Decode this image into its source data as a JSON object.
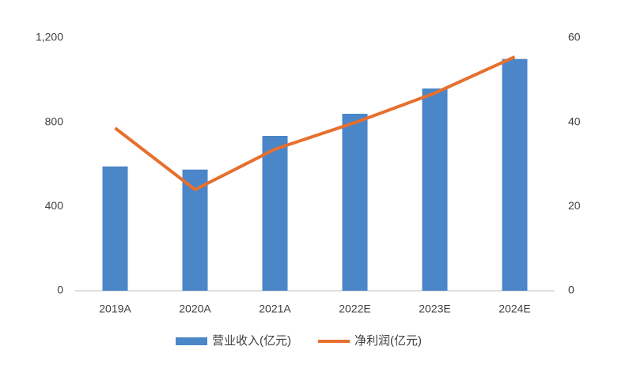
{
  "chart_data": {
    "type": "combo",
    "categories": [
      "2019A",
      "2020A",
      "2021A",
      "2022E",
      "2023E",
      "2024E"
    ],
    "series": [
      {
        "name": "营业收入(亿元)",
        "type": "bar",
        "color": "#4a86c8",
        "values": [
          590,
          575,
          735,
          840,
          960,
          1100
        ]
      },
      {
        "name": "净利润(亿元)",
        "type": "line",
        "axis": "y2",
        "color": "#e6702e",
        "values": [
          38.6,
          24,
          33.6,
          39.9,
          46.9,
          55.5
        ]
      }
    ],
    "ylim": [
      0,
      1200
    ],
    "yticks": [
      0,
      400,
      800,
      {
        "value": 1200,
        "label": "1,200"
      }
    ],
    "y2lim": [
      0,
      60
    ],
    "y2ticks": [
      0,
      20,
      40,
      60
    ],
    "legend": "bottom"
  }
}
